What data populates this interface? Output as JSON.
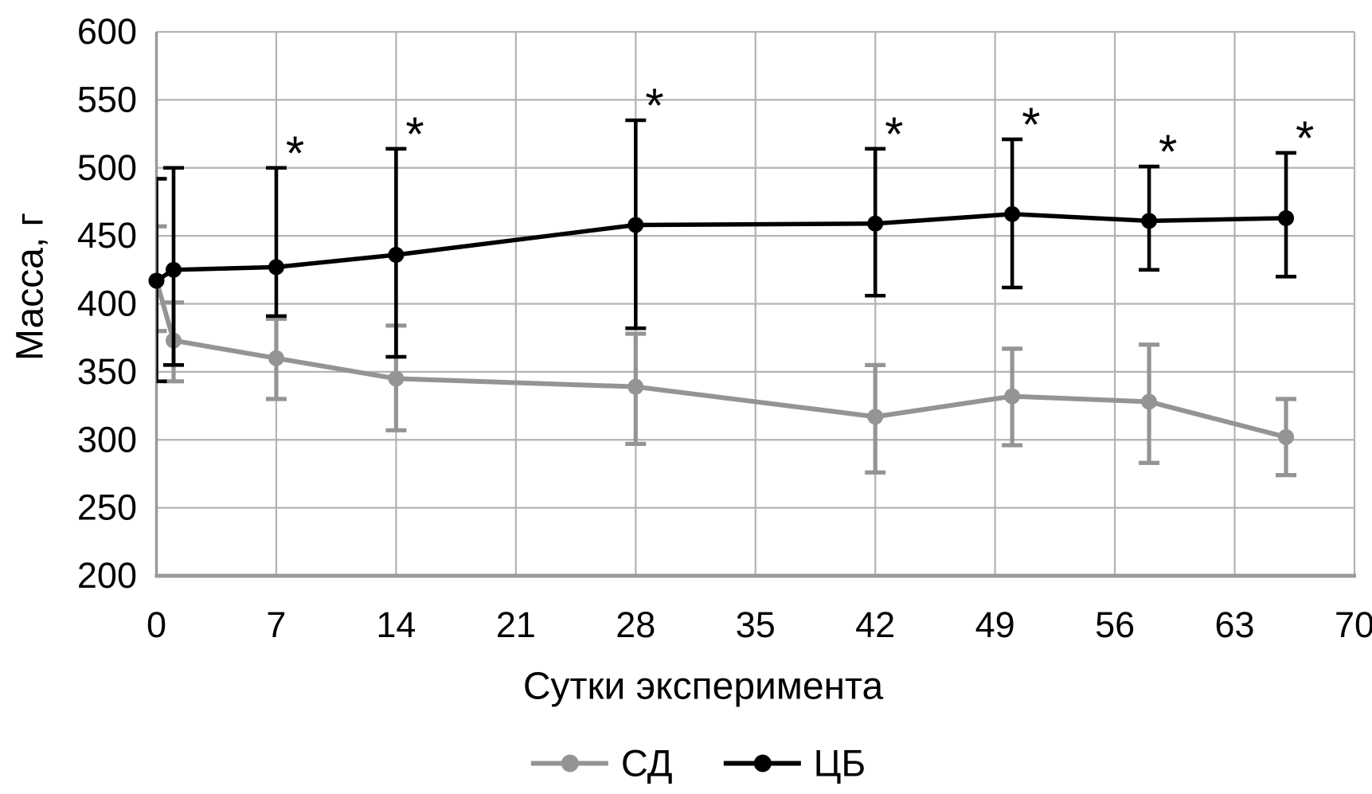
{
  "figure": {
    "background": "#ffffff",
    "ylabel": "Масса, г",
    "xlabel": "Сутки эксперимента"
  },
  "chart_data": {
    "type": "line",
    "title": "",
    "xlabel": "Сутки эксперимента",
    "ylabel": "Масса, г",
    "xlim": [
      0,
      70
    ],
    "ylim": [
      200,
      600
    ],
    "x_ticks": [
      0,
      7,
      14,
      21,
      28,
      35,
      42,
      49,
      56,
      63,
      70
    ],
    "y_ticks": [
      200,
      250,
      300,
      350,
      400,
      450,
      500,
      550,
      600
    ],
    "grid": true,
    "legend_position": "bottom-center",
    "colors": {
      "sd": "#949494",
      "cb": "#000000",
      "grid": "#b3b3b3",
      "axis": "#9a9a9a",
      "text": "#000000"
    },
    "x_days": [
      0,
      1,
      7,
      14,
      28,
      42,
      50,
      58,
      66
    ],
    "series": [
      {
        "key": "sd",
        "name": "СД",
        "color": "#949494",
        "values": [
          417,
          373,
          360,
          345,
          339,
          317,
          332,
          328,
          302
        ],
        "err_low": [
          380,
          343,
          330,
          307,
          297,
          276,
          296,
          283,
          274
        ],
        "err_high": [
          457,
          401,
          389,
          384,
          378,
          355,
          367,
          370,
          330
        ]
      },
      {
        "key": "cb",
        "name": "ЦБ",
        "color": "#000000",
        "values": [
          417,
          425,
          427,
          436,
          458,
          459,
          466,
          461,
          463
        ],
        "err_low": [
          343,
          355,
          391,
          361,
          382,
          406,
          412,
          425,
          420
        ],
        "err_high": [
          492,
          500,
          500,
          514,
          535,
          514,
          521,
          501,
          511
        ]
      }
    ],
    "annotations": {
      "symbol": "*",
      "series_key": "cb",
      "x_days": [
        7,
        14,
        28,
        42,
        50,
        58,
        66
      ]
    }
  },
  "legend": {
    "items": [
      {
        "key": "sd",
        "label": "СД",
        "color": "#949494"
      },
      {
        "key": "cb",
        "label": "ЦБ",
        "color": "#000000"
      }
    ]
  }
}
